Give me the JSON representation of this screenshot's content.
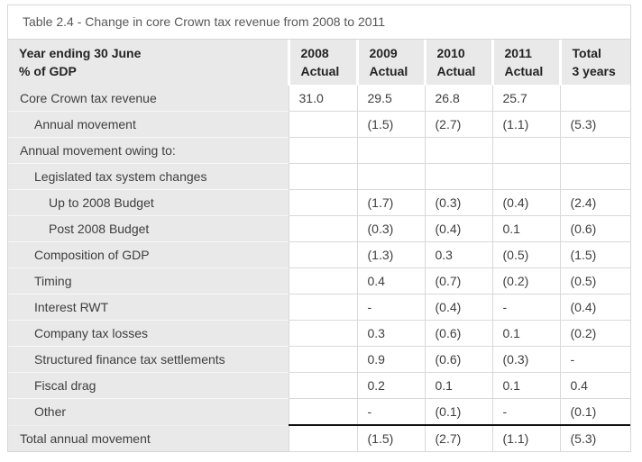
{
  "title": "Table 2.4 - Change in core Crown tax revenue from 2008 to 2011",
  "table": {
    "header": {
      "row_label_line1": "Year ending 30 June",
      "row_label_line2": "% of GDP",
      "columns": [
        {
          "line1": "2008",
          "line2": "Actual"
        },
        {
          "line1": "2009",
          "line2": "Actual"
        },
        {
          "line1": "2010",
          "line2": "Actual"
        },
        {
          "line1": "2011",
          "line2": "Actual"
        },
        {
          "line1": "Total",
          "line2": "3 years"
        }
      ]
    },
    "rows": [
      {
        "label": "Core Crown tax revenue",
        "indent": 0,
        "values": [
          "31.0",
          "29.5",
          "26.8",
          "25.7",
          ""
        ]
      },
      {
        "label": "Annual movement",
        "indent": 1,
        "values": [
          "",
          "(1.5)",
          "(2.7)",
          "(1.1)",
          "(5.3)"
        ]
      },
      {
        "label": "Annual movement owing to:",
        "indent": 0,
        "values": [
          "",
          "",
          "",
          "",
          ""
        ]
      },
      {
        "label": "Legislated tax system changes",
        "indent": 1,
        "values": [
          "",
          "",
          "",
          "",
          ""
        ]
      },
      {
        "label": "Up to 2008 Budget",
        "indent": 2,
        "values": [
          "",
          "(1.7)",
          "(0.3)",
          "(0.4)",
          "(2.4)"
        ]
      },
      {
        "label": "Post 2008 Budget",
        "indent": 2,
        "values": [
          "",
          "(0.3)",
          "(0.4)",
          "0.1",
          "(0.6)"
        ]
      },
      {
        "label": "Composition of GDP",
        "indent": 1,
        "values": [
          "",
          "(1.3)",
          "0.3",
          "(0.5)",
          "(1.5)"
        ]
      },
      {
        "label": "Timing",
        "indent": 1,
        "values": [
          "",
          "0.4",
          "(0.7)",
          "(0.2)",
          "(0.5)"
        ]
      },
      {
        "label": "Interest RWT",
        "indent": 1,
        "values": [
          "",
          "-",
          "(0.4)",
          "-",
          "(0.4)"
        ]
      },
      {
        "label": "Company tax losses",
        "indent": 1,
        "values": [
          "",
          "0.3",
          "(0.6)",
          "0.1",
          "(0.2)"
        ]
      },
      {
        "label": "Structured finance tax settlements",
        "indent": 1,
        "values": [
          "",
          "0.9",
          "(0.6)",
          "(0.3)",
          "-"
        ]
      },
      {
        "label": "Fiscal drag",
        "indent": 1,
        "values": [
          "",
          "0.2",
          "0.1",
          "0.1",
          "0.4"
        ]
      },
      {
        "label": "Other",
        "indent": 1,
        "values": [
          "",
          "-",
          "(0.1)",
          "-",
          "(0.1)"
        ]
      },
      {
        "label": "Total annual movement",
        "indent": 0,
        "values": [
          "",
          "(1.5)",
          "(2.7)",
          "(1.1)",
          "(5.3)"
        ],
        "is_total": true
      }
    ],
    "colors": {
      "header_bg": "#e9e9e9",
      "label_col_bg": "#e9e9e9",
      "grid_border": "#d9d9d9",
      "outer_border": "#d7d7d7",
      "total_rule": "#111111",
      "title_text": "#58585a",
      "body_text": "#3e3e3e",
      "header_text": "#232323"
    }
  }
}
